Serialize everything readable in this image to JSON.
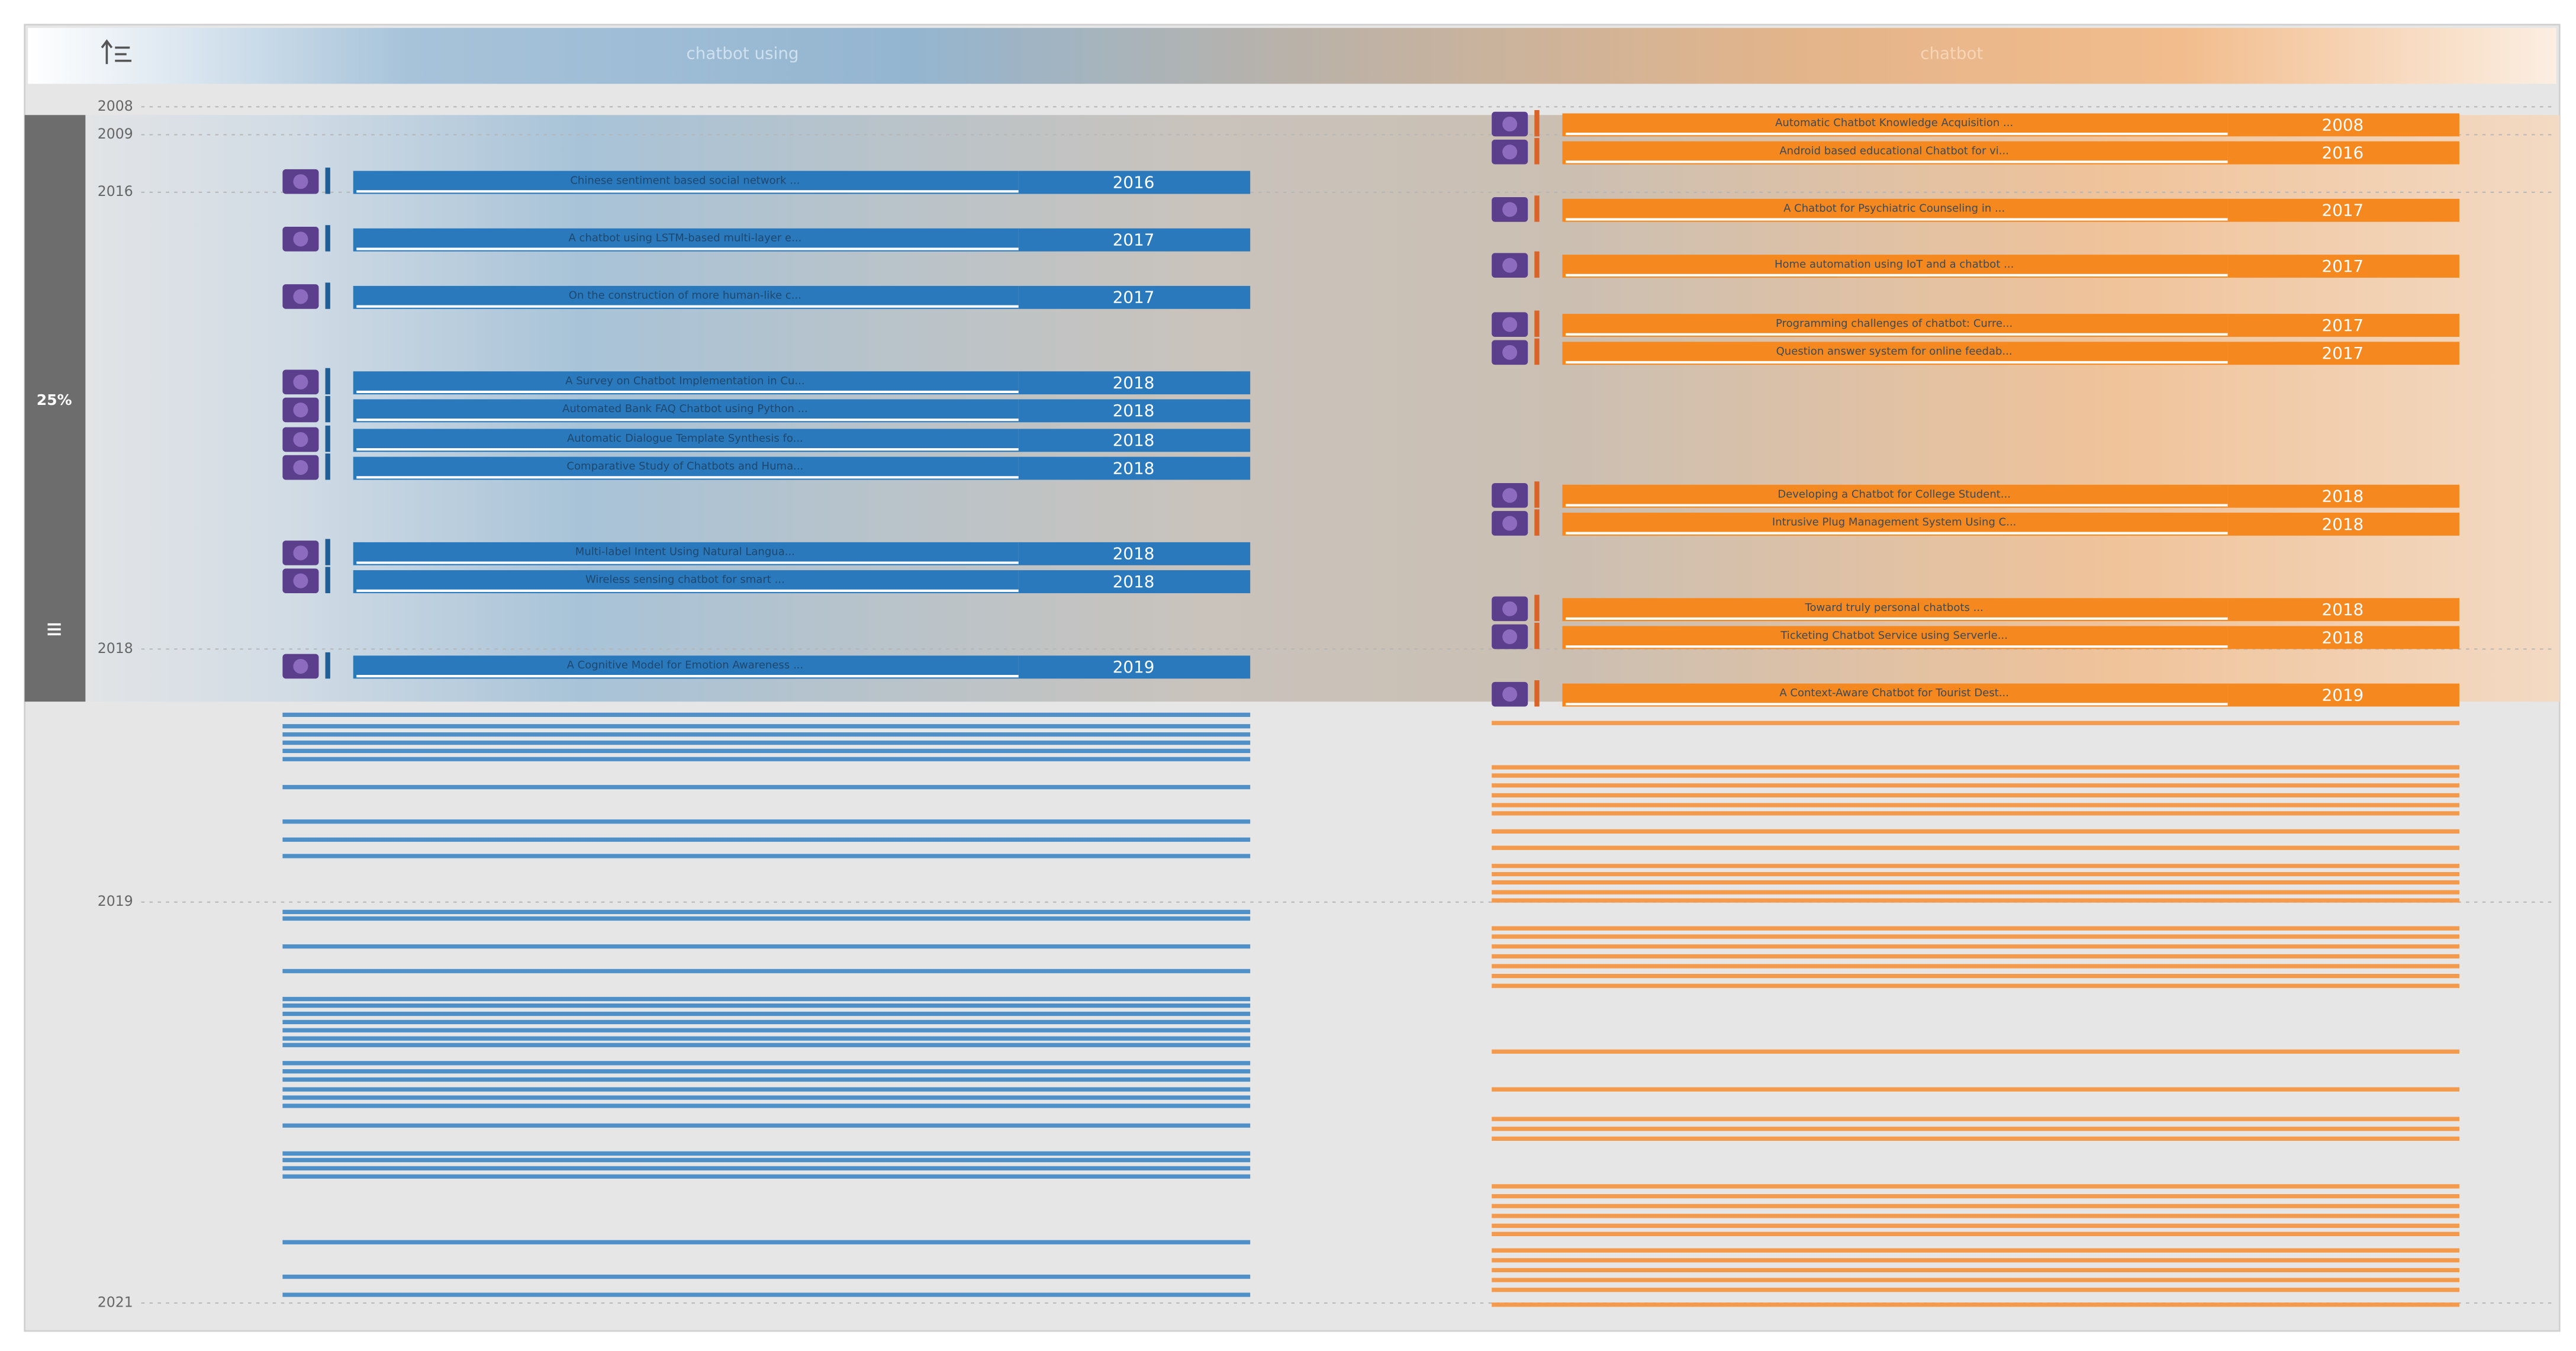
{
  "toolbar": {
    "zoom": "25%"
  },
  "axis": {
    "years": [
      "2008",
      "2009",
      "2016",
      "2018",
      "2019",
      "2021"
    ]
  },
  "columns": [
    {
      "title": "chatbot using",
      "items": [
        {
          "title": "Chinese sentiment based social network ...",
          "year": "2016"
        },
        {
          "title": "A chatbot using LSTM-based multi-layer e...",
          "year": "2017"
        },
        {
          "title": "On the construction of more human-like c...",
          "year": "2017"
        },
        {
          "title": "A Survey on Chatbot Implementation in Cu...",
          "year": "2018"
        },
        {
          "title": "Automated Bank FAQ Chatbot using Python ...",
          "year": "2018"
        },
        {
          "title": "Automatic Dialogue Template Synthesis fo...",
          "year": "2018"
        },
        {
          "title": "Comparative Study of Chatbots and Huma...",
          "year": "2018"
        },
        {
          "title": "Multi-label Intent Using Natural Langua...",
          "year": "2018"
        },
        {
          "title": "Wireless sensing chatbot for smart ...",
          "year": "2018"
        },
        {
          "title": "A Cognitive Model for Emotion Awareness ...",
          "year": "2019"
        }
      ]
    },
    {
      "title": "chatbot",
      "items": [
        {
          "title": "Automatic Chatbot Knowledge Acquisition ...",
          "year": "2008"
        },
        {
          "title": "Android based educational Chatbot for vi...",
          "year": "2016"
        },
        {
          "title": "A Chatbot for Psychiatric Counseling in ...",
          "year": "2017"
        },
        {
          "title": "Home automation using IoT and a chatbot ...",
          "year": "2017"
        },
        {
          "title": "Programming challenges of chatbot: Curre...",
          "year": "2017"
        },
        {
          "title": "Question answer system for online feedab...",
          "year": "2017"
        },
        {
          "title": "Developing a Chatbot for College Student...",
          "year": "2018"
        },
        {
          "title": "Intrusive Plug Management System Using C...",
          "year": "2018"
        },
        {
          "title": "Toward truly personal chatbots ...",
          "year": "2018"
        },
        {
          "title": "Ticketing Chatbot Service using Serverle...",
          "year": "2018"
        },
        {
          "title": "A Context-Aware Chatbot for Tourist Dest...",
          "year": "2019"
        }
      ]
    }
  ]
}
